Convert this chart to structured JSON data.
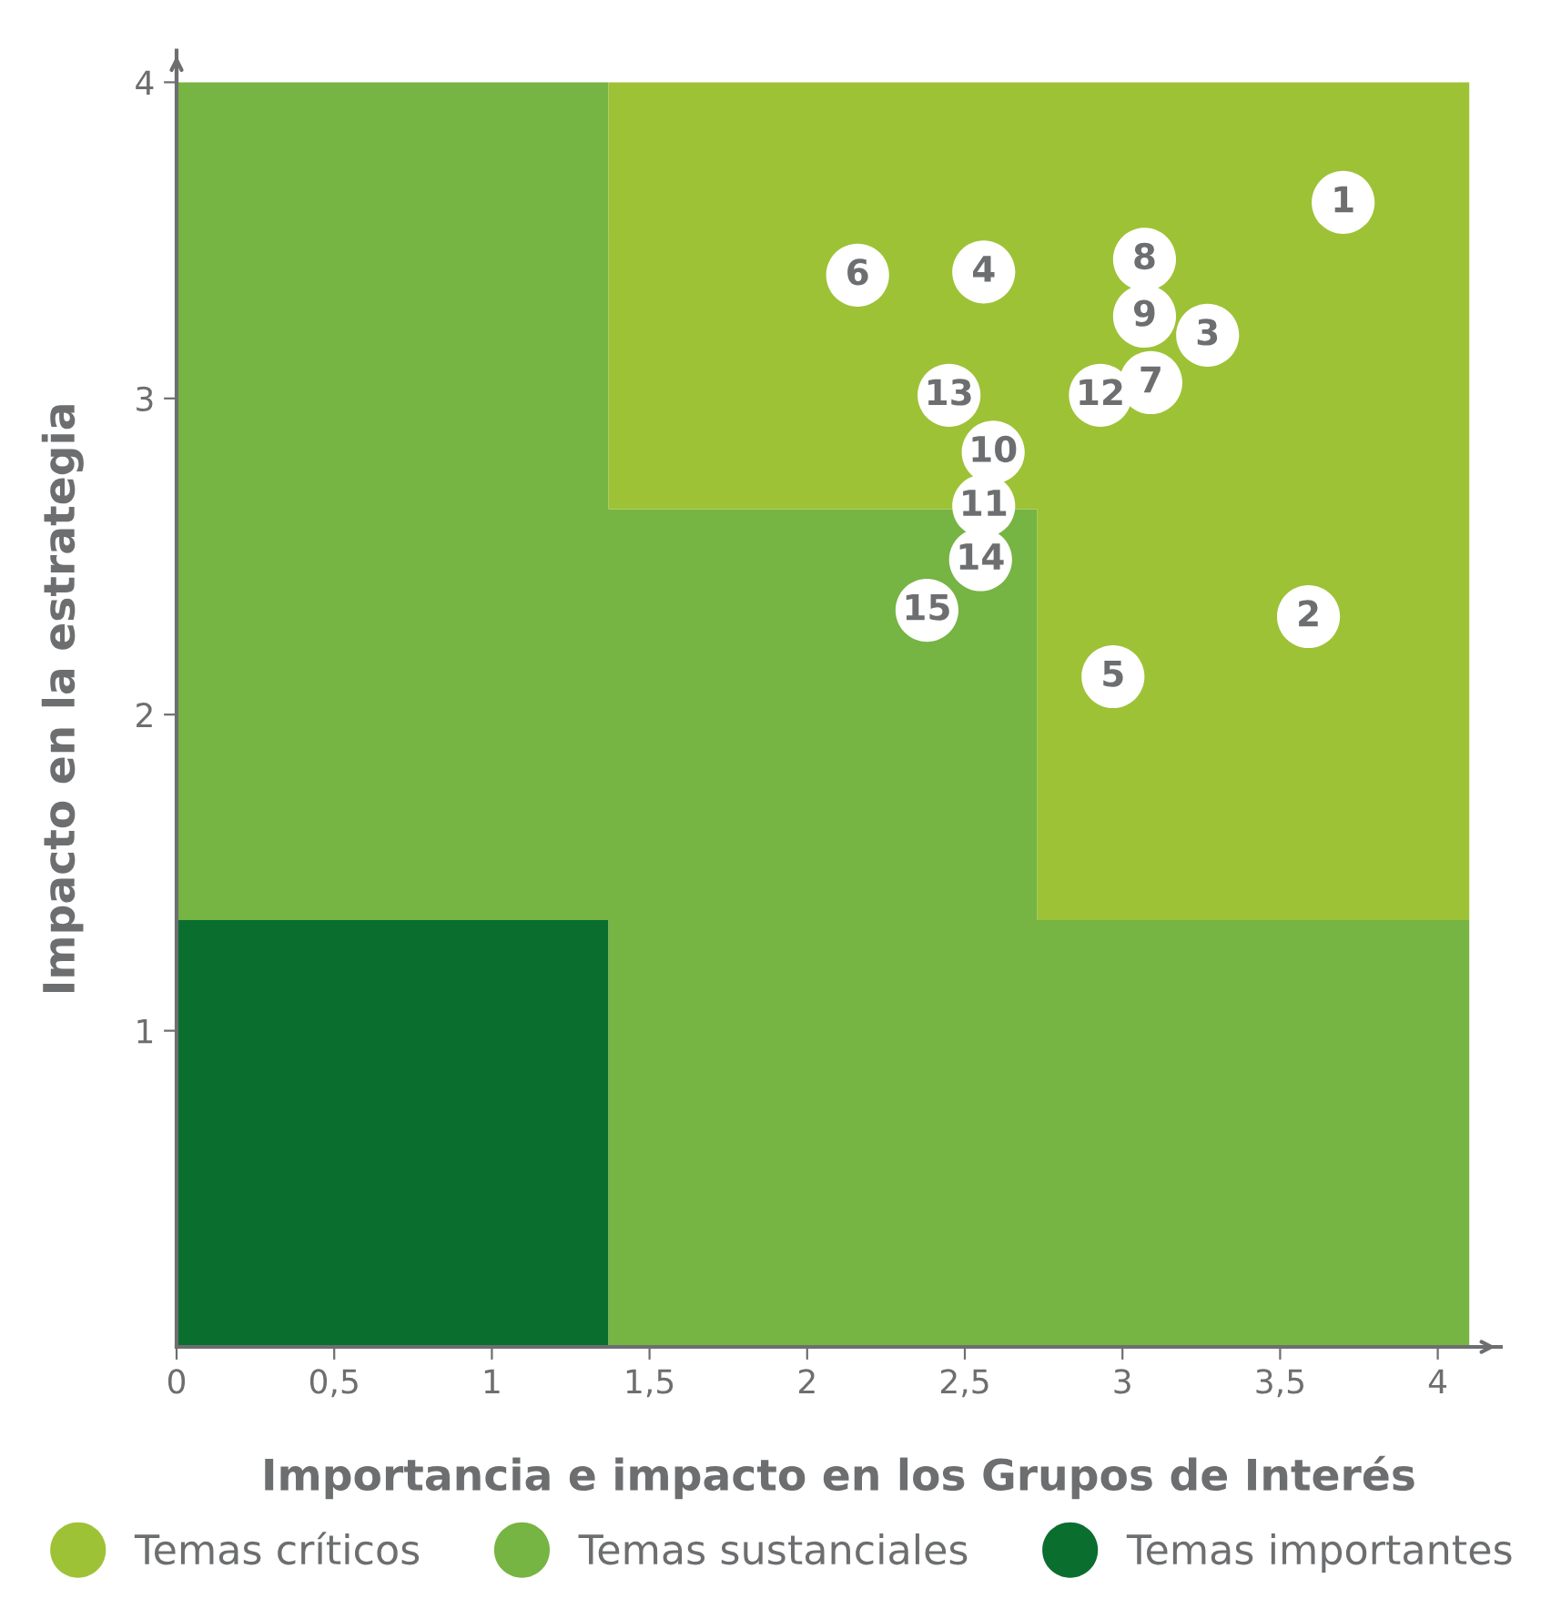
{
  "chart_data": {
    "type": "scatter",
    "xlabel": "Importancia e impacto en los Grupos de Interés",
    "ylabel": "Impacto en la estrategia",
    "xlim": [
      0,
      4.2
    ],
    "ylim": [
      0,
      4.1
    ],
    "xticks": [
      0,
      {
        "value": 0.5,
        "label": "0,5"
      },
      1,
      {
        "value": 1.5,
        "label": "1,5"
      },
      2,
      {
        "value": 2.5,
        "label": "2,5"
      },
      3,
      {
        "value": 3.5,
        "label": "3,5"
      },
      4
    ],
    "yticks": [
      1,
      2,
      3,
      4
    ],
    "grid": false,
    "legend": "bottom",
    "stacked": true,
    "series": [
      {
        "type": "area",
        "name": "Temas importantes",
        "color": "#0a6e2f",
        "x": [
          0,
          1.37,
          1.37,
          2.73,
          2.73,
          4.1
        ],
        "values": [
          1.35,
          1.35,
          0,
          0,
          0,
          0
        ]
      },
      {
        "type": "area",
        "name": "Temas sustanciales",
        "color": "#76b443",
        "x": [
          0,
          1.37,
          1.37,
          2.73,
          2.73,
          4.1
        ],
        "values": [
          2.65,
          2.65,
          2.65,
          2.65,
          1.35,
          1.35
        ]
      },
      {
        "type": "area",
        "name": "Temas críticos",
        "color": "#9dc236",
        "x": [
          0,
          1.37,
          1.37,
          2.73,
          2.73,
          4.1
        ],
        "values": [
          0,
          0,
          1.35,
          1.35,
          2.65,
          2.65
        ]
      },
      {
        "color": "#ffffff",
        "x": [
          3.7,
          3.59,
          3.27,
          2.56,
          2.97,
          2.16,
          3.09,
          3.07,
          3.07,
          2.59,
          2.56,
          2.93,
          2.45,
          2.55,
          2.38
        ],
        "values": [
          3.62,
          2.31,
          3.2,
          3.4,
          2.12,
          3.39,
          3.05,
          3.44,
          3.26,
          2.83,
          2.66,
          3.01,
          3.01,
          2.49,
          2.33
        ]
      }
    ],
    "annotations": [
      {
        "text": "1",
        "x": 3.7,
        "y": 3.62
      },
      {
        "text": "2",
        "x": 3.59,
        "y": 2.31
      },
      {
        "text": "3",
        "x": 3.27,
        "y": 3.2
      },
      {
        "text": "4",
        "x": 2.56,
        "y": 3.4
      },
      {
        "text": "5",
        "x": 2.97,
        "y": 2.12
      },
      {
        "text": "6",
        "x": 2.16,
        "y": 3.39
      },
      {
        "text": "7",
        "x": 3.09,
        "y": 3.05
      },
      {
        "text": "8",
        "x": 3.07,
        "y": 3.44
      },
      {
        "text": "9",
        "x": 3.07,
        "y": 3.26
      },
      {
        "text": "10",
        "x": 2.59,
        "y": 2.83
      },
      {
        "text": "11",
        "x": 2.56,
        "y": 2.66
      },
      {
        "text": "12",
        "x": 2.93,
        "y": 3.01
      },
      {
        "text": "13",
        "x": 2.45,
        "y": 3.01
      },
      {
        "text": "14",
        "x": 2.55,
        "y": 2.49
      },
      {
        "text": "15",
        "x": 2.38,
        "y": 2.33
      }
    ]
  }
}
